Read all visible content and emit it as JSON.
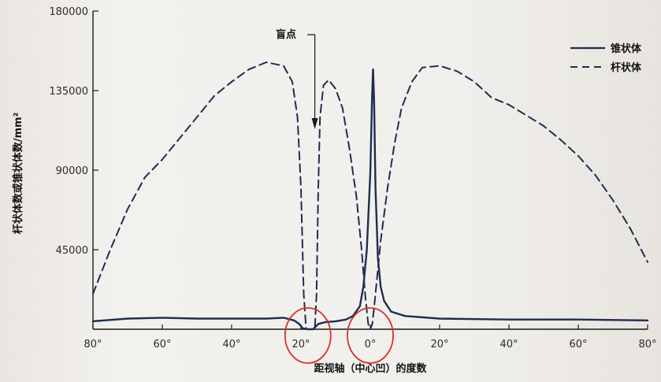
{
  "chart_data": {
    "type": "line",
    "xlabel": "距视轴（中心凹）的度数",
    "ylabel": "杆状体数或锥状体数/mm²",
    "xlim": [
      -80,
      80
    ],
    "ylim": [
      0,
      180000
    ],
    "x_tick_labels": [
      "80°",
      "60°",
      "40°",
      "20°",
      "0°",
      "20°",
      "40°",
      "60°",
      "80°"
    ],
    "x_tick_values": [
      -80,
      -60,
      -40,
      -20,
      0,
      20,
      40,
      60,
      80
    ],
    "y_tick_labels": [
      "180000",
      "135000",
      "90000",
      "45000"
    ],
    "y_tick_values": [
      180000,
      135000,
      90000,
      45000
    ],
    "grid": false,
    "legend_position": "top-right",
    "annotation": {
      "label": "盲点",
      "x": -16
    },
    "series": [
      {
        "name": "锥状体",
        "style": "solid",
        "color": "#1e2d52",
        "points": [
          [
            -80,
            4500
          ],
          [
            -70,
            6000
          ],
          [
            -60,
            6500
          ],
          [
            -50,
            6000
          ],
          [
            -40,
            6000
          ],
          [
            -30,
            6000
          ],
          [
            -25,
            6500
          ],
          [
            -22,
            5000
          ],
          [
            -20.5,
            3000
          ],
          [
            -19.5,
            500
          ],
          [
            -18,
            0
          ],
          [
            -16.5,
            0
          ],
          [
            -15.5,
            2000
          ],
          [
            -15,
            3000
          ],
          [
            -13,
            4000
          ],
          [
            -10,
            4500
          ],
          [
            -7,
            5500
          ],
          [
            -5,
            7500
          ],
          [
            -3,
            13000
          ],
          [
            -2,
            24000
          ],
          [
            -1,
            45000
          ],
          [
            0,
            88000
          ],
          [
            0.5,
            130000
          ],
          [
            0.8,
            147000
          ],
          [
            1.1,
            130000
          ],
          [
            1.5,
            80000
          ],
          [
            2.2,
            40000
          ],
          [
            3,
            24000
          ],
          [
            4,
            16000
          ],
          [
            6,
            10000
          ],
          [
            10,
            7500
          ],
          [
            20,
            6000
          ],
          [
            40,
            5500
          ],
          [
            60,
            5500
          ],
          [
            80,
            5000
          ]
        ]
      },
      {
        "name": "杆状体",
        "style": "dashed",
        "color": "#1e2d52",
        "points": [
          [
            -80,
            20000
          ],
          [
            -75,
            45000
          ],
          [
            -70,
            68000
          ],
          [
            -65,
            86000
          ],
          [
            -60,
            96000
          ],
          [
            -55,
            108000
          ],
          [
            -50,
            120000
          ],
          [
            -45,
            132000
          ],
          [
            -40,
            140000
          ],
          [
            -35,
            147000
          ],
          [
            -30,
            151000
          ],
          [
            -25,
            149000
          ],
          [
            -22.5,
            140000
          ],
          [
            -21,
            120000
          ],
          [
            -20,
            80000
          ],
          [
            -19.2,
            20000
          ],
          [
            -18.5,
            0
          ],
          [
            -16,
            0
          ],
          [
            -15.5,
            20000
          ],
          [
            -15,
            80000
          ],
          [
            -14.5,
            120000
          ],
          [
            -13.5,
            138000
          ],
          [
            -12,
            141000
          ],
          [
            -10,
            136000
          ],
          [
            -8,
            125000
          ],
          [
            -6,
            102000
          ],
          [
            -4,
            75000
          ],
          [
            -2.5,
            45000
          ],
          [
            -1.5,
            20000
          ],
          [
            -0.6,
            3000
          ],
          [
            0,
            0
          ],
          [
            0.6,
            3000
          ],
          [
            1.5,
            20000
          ],
          [
            3,
            50000
          ],
          [
            5,
            80000
          ],
          [
            7,
            105000
          ],
          [
            9,
            125000
          ],
          [
            12,
            140000
          ],
          [
            15,
            148000
          ],
          [
            20,
            149000
          ],
          [
            25,
            146000
          ],
          [
            30,
            140000
          ],
          [
            35,
            131000
          ],
          [
            40,
            127000
          ],
          [
            45,
            121000
          ],
          [
            50,
            115000
          ],
          [
            55,
            107000
          ],
          [
            60,
            98000
          ],
          [
            65,
            87000
          ],
          [
            70,
            73000
          ],
          [
            75,
            57000
          ],
          [
            80,
            38000
          ]
        ]
      }
    ]
  },
  "colors": {
    "line": "#1e2d52",
    "axis": "#1a1a1a",
    "highlight": "#d8302c"
  },
  "highlights": [
    {
      "label": "blind-spot-circle",
      "x": -18
    },
    {
      "label": "fovea-circle",
      "x": 0
    }
  ]
}
